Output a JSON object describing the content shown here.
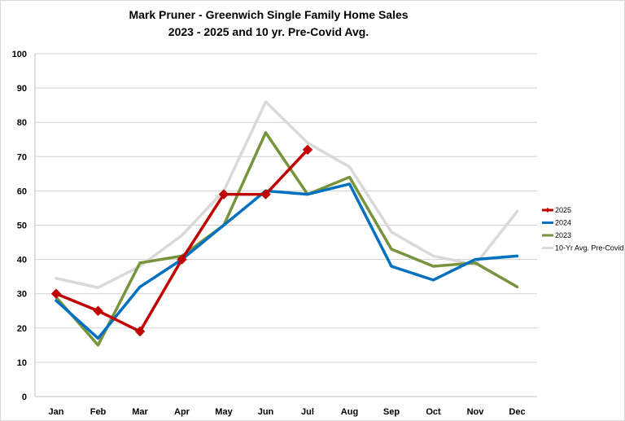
{
  "title_line1": "Mark Pruner - Greenwich Single Family Home Sales",
  "title_line2": "2023 - 2025 and 10 yr. Pre-Covid Avg.",
  "chart_data": {
    "type": "line",
    "title": "Mark Pruner - Greenwich Single Family Home Sales 2023 - 2025 and 10 yr. Pre-Covid Avg.",
    "categories": [
      "Jan",
      "Feb",
      "Mar",
      "Apr",
      "May",
      "Jun",
      "Jul",
      "Aug",
      "Sep",
      "Oct",
      "Nov",
      "Dec"
    ],
    "ylim": [
      0,
      100
    ],
    "yticks": [
      0,
      10,
      20,
      30,
      40,
      50,
      60,
      70,
      80,
      90,
      100
    ],
    "grid": true,
    "legend_position": "right",
    "series": [
      {
        "name": "2025",
        "color": "#c00000",
        "marker": "diamond",
        "values": [
          30,
          25,
          19,
          40,
          59,
          59,
          72,
          null,
          null,
          null,
          null,
          null
        ]
      },
      {
        "name": "2024",
        "color": "#0070c0",
        "values": [
          28,
          17,
          32,
          40,
          50,
          60,
          59,
          62,
          38,
          34,
          40,
          41
        ]
      },
      {
        "name": "2023",
        "color": "#77933c",
        "values": [
          29,
          15,
          39,
          41,
          50,
          77,
          59,
          64,
          43,
          38,
          39,
          32
        ]
      },
      {
        "name": "10-Yr Avg. Pre-Covid",
        "color": "#d9d9d9",
        "values": [
          34.5,
          31.8,
          38,
          47,
          60,
          86,
          74,
          67,
          48,
          41,
          38.5,
          54
        ]
      }
    ]
  }
}
